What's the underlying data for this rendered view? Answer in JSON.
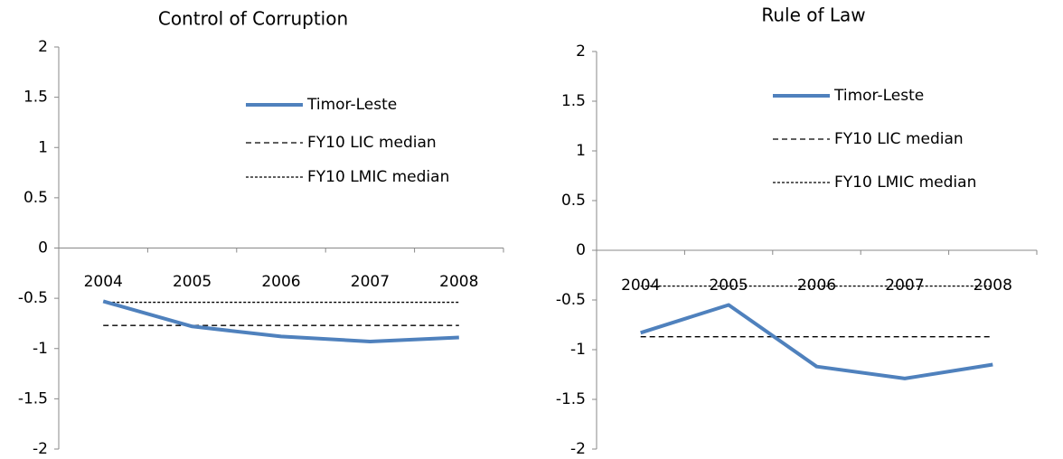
{
  "chart_data": [
    {
      "type": "line",
      "title": "Control of Corruption",
      "categories": [
        "2004",
        "2005",
        "2006",
        "2007",
        "2008"
      ],
      "series": [
        {
          "name": "Timor-Leste",
          "color": "#4f81bd",
          "style": "solid",
          "values": [
            -0.53,
            -0.78,
            -0.88,
            -0.93,
            -0.89
          ]
        },
        {
          "name": "FY10 LIC median",
          "color": "#000000",
          "style": "dashed",
          "values": [
            -0.77,
            -0.77,
            -0.77,
            -0.77,
            -0.77
          ]
        },
        {
          "name": "FY10 LMIC median",
          "color": "#000000",
          "style": "dotted",
          "values": [
            -0.54,
            -0.54,
            -0.54,
            -0.54,
            -0.54
          ]
        }
      ],
      "ylim": [
        -2,
        2
      ],
      "yticks": [
        -2,
        -1.5,
        -1,
        -0.5,
        0,
        0.5,
        1,
        1.5,
        2
      ],
      "grid": false
    },
    {
      "type": "line",
      "title": "Rule of Law",
      "categories": [
        "2004",
        "2005",
        "2006",
        "2007",
        "2008"
      ],
      "series": [
        {
          "name": "Timor-Leste",
          "color": "#4f81bd",
          "style": "solid",
          "values": [
            -0.83,
            -0.55,
            -1.17,
            -1.29,
            -1.15
          ]
        },
        {
          "name": "FY10 LIC median",
          "color": "#000000",
          "style": "dashed",
          "values": [
            -0.87,
            -0.87,
            -0.87,
            -0.87,
            -0.87
          ]
        },
        {
          "name": "FY10 LMIC median",
          "color": "#000000",
          "style": "dotted",
          "values": [
            -0.36,
            -0.36,
            -0.36,
            -0.36,
            -0.36
          ]
        }
      ],
      "ylim": [
        -2,
        2
      ],
      "yticks": [
        -2,
        -1.5,
        -1,
        -0.5,
        0,
        0.5,
        1,
        1.5,
        2
      ],
      "grid": false
    }
  ]
}
